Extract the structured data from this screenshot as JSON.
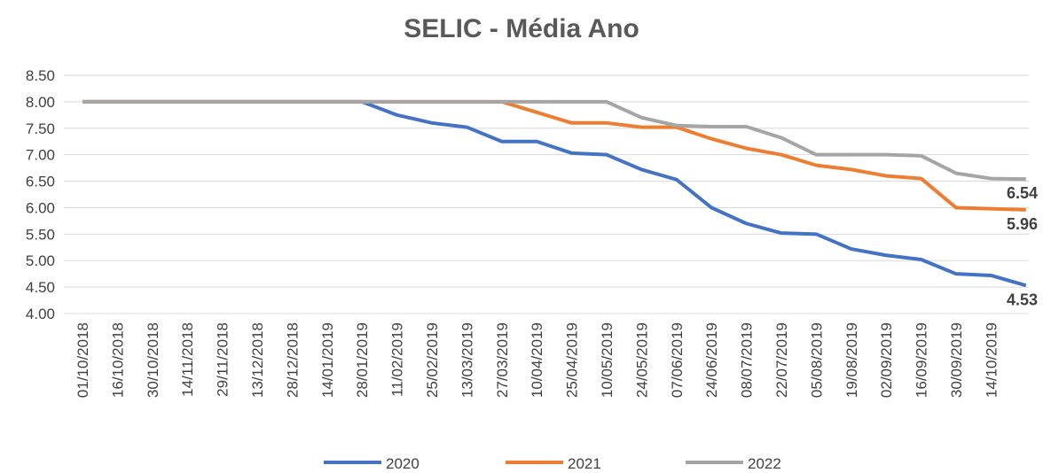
{
  "chart_data": {
    "type": "line",
    "title": "SELIC - Média Ano",
    "categories": [
      "01/10/2018",
      "16/10/2018",
      "30/10/2018",
      "14/11/2018",
      "29/11/2018",
      "13/12/2018",
      "28/12/2018",
      "14/01/2019",
      "28/01/2019",
      "11/02/2019",
      "25/02/2019",
      "13/03/2019",
      "27/03/2019",
      "10/04/2019",
      "25/04/2019",
      "10/05/2019",
      "24/05/2019",
      "07/06/2019",
      "24/06/2019",
      "08/07/2019",
      "22/07/2019",
      "05/08/2019",
      "19/08/2019",
      "02/09/2019",
      "16/09/2019",
      "30/09/2019",
      "14/10/2019",
      null
    ],
    "series": [
      {
        "name": "2020",
        "color": "#4472c4",
        "values": [
          8,
          8,
          8,
          8,
          8,
          8,
          8,
          8,
          8,
          7.75,
          7.6,
          7.52,
          7.25,
          7.25,
          7.03,
          7,
          6.72,
          6.53,
          6,
          5.7,
          5.52,
          5.5,
          5.22,
          5.1,
          5.02,
          4.75,
          4.72,
          4.53
        ],
        "value_labels": [
          null,
          null,
          null,
          null,
          null,
          null,
          null,
          null,
          null,
          null,
          null,
          null,
          null,
          null,
          null,
          null,
          null,
          null,
          null,
          null,
          null,
          null,
          null,
          null,
          null,
          null,
          null,
          "4.53"
        ]
      },
      {
        "name": "2021",
        "color": "#ed7d31",
        "values": [
          8,
          8,
          8,
          8,
          8,
          8,
          8,
          8,
          8,
          8,
          8,
          8,
          8,
          7.8,
          7.6,
          7.6,
          7.52,
          7.52,
          7.3,
          7.12,
          7,
          6.8,
          6.72,
          6.6,
          6.55,
          6,
          5.98,
          5.96
        ],
        "value_labels": [
          null,
          null,
          null,
          null,
          null,
          null,
          null,
          null,
          null,
          null,
          null,
          null,
          null,
          null,
          null,
          null,
          null,
          null,
          null,
          null,
          null,
          null,
          null,
          null,
          null,
          null,
          null,
          "5.96"
        ]
      },
      {
        "name": "2022",
        "color": "#a5a5a5",
        "values": [
          8,
          8,
          8,
          8,
          8,
          8,
          8,
          8,
          8,
          8,
          8,
          8,
          8,
          8,
          8,
          8,
          7.7,
          7.55,
          7.53,
          7.53,
          7.32,
          7,
          7,
          7,
          6.98,
          6.65,
          6.55,
          6.54
        ],
        "value_labels": [
          null,
          null,
          null,
          null,
          null,
          null,
          null,
          null,
          null,
          null,
          null,
          null,
          null,
          null,
          null,
          null,
          null,
          null,
          null,
          null,
          null,
          null,
          null,
          null,
          null,
          null,
          null,
          "6.54"
        ]
      }
    ],
    "ylim": [
      4,
      8.5
    ],
    "yticks": [
      {
        "value": 4,
        "label": "4.00"
      },
      {
        "value": 4.5,
        "label": "4.50"
      },
      {
        "value": 5,
        "label": "5.00"
      },
      {
        "value": 5.5,
        "label": "5.50"
      },
      {
        "value": 6,
        "label": "6.00"
      },
      {
        "value": 6.5,
        "label": "6.50"
      },
      {
        "value": 7,
        "label": "7.00"
      },
      {
        "value": 7.5,
        "label": "7.50"
      },
      {
        "value": 8,
        "label": "8.00"
      },
      {
        "value": 8.5,
        "label": "8.50"
      }
    ],
    "grid": true,
    "legend": "bottom"
  }
}
